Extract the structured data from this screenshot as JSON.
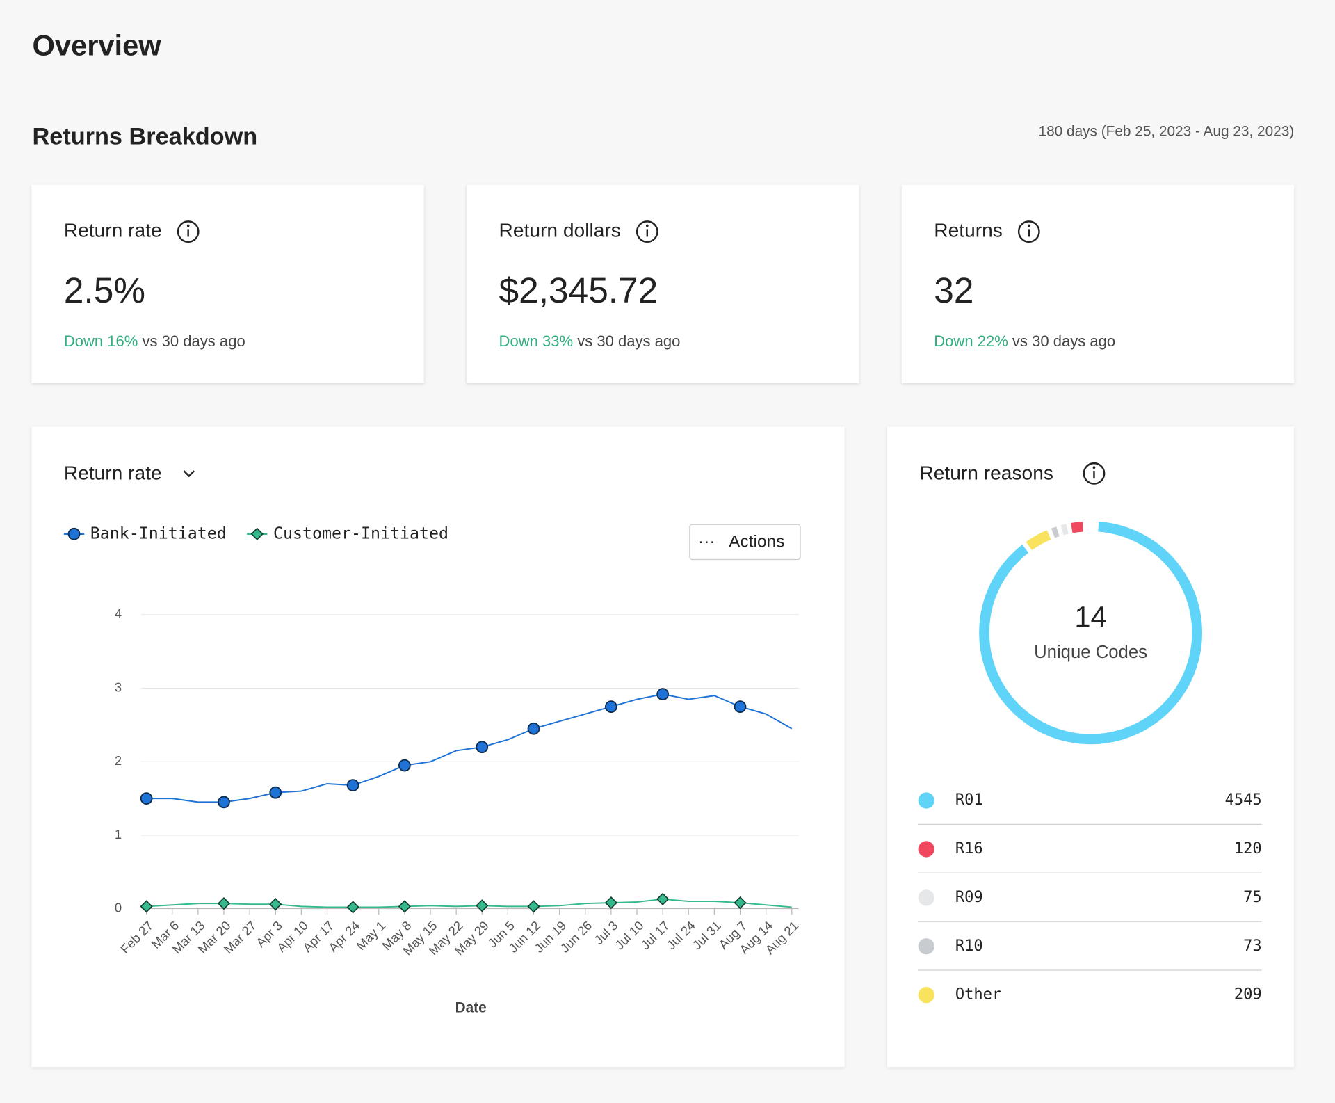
{
  "title": "Overview",
  "section": "Returns Breakdown",
  "date_range": "180 days (Feb 25, 2023 - Aug 23, 2023)",
  "cards": [
    {
      "label": "Return rate",
      "value": "2.5%",
      "change": "Down 16%",
      "comparison": "vs 30 days ago"
    },
    {
      "label": "Return dollars",
      "value": "$2,345.72",
      "change": "Down 33%",
      "comparison": "vs 30 days ago"
    },
    {
      "label": "Returns",
      "value": "32",
      "change": "Down 22%",
      "comparison": "vs 30 days ago"
    }
  ],
  "chart_data": [
    {
      "type": "line",
      "title": "Return rate",
      "button": "Actions",
      "x_label": "Date",
      "categories": [
        "Feb 27",
        "Mar 6",
        "Mar 13",
        "Mar 20",
        "Mar 27",
        "Apr 3",
        "Apr 10",
        "Apr 17",
        "Apr 24",
        "May 1",
        "May 8",
        "May 15",
        "May 22",
        "May 29",
        "Jun 5",
        "Jun 12",
        "Jun 19",
        "Jun 26",
        "Jul 3",
        "Jul 10",
        "Jul 17",
        "Jul 24",
        "Jul 31",
        "Aug 7",
        "Aug 14",
        "Aug 21"
      ],
      "series": [
        {
          "name": "Bank-Initiated",
          "color": "#1f72d6",
          "values": [
            1.5,
            1.5,
            1.45,
            1.45,
            1.5,
            1.58,
            1.6,
            1.7,
            1.68,
            1.8,
            1.95,
            2.0,
            2.15,
            2.2,
            2.3,
            2.45,
            2.55,
            2.65,
            2.75,
            2.85,
            2.92,
            2.85,
            2.9,
            2.75,
            2.65,
            2.45
          ]
        },
        {
          "name": "Customer-Initiated",
          "color": "#36b98c",
          "values": [
            0.03,
            0.05,
            0.07,
            0.07,
            0.06,
            0.06,
            0.03,
            0.02,
            0.02,
            0.02,
            0.03,
            0.04,
            0.03,
            0.04,
            0.03,
            0.03,
            0.04,
            0.07,
            0.08,
            0.09,
            0.13,
            0.1,
            0.1,
            0.08,
            0.05,
            0.02
          ]
        }
      ],
      "ylim": [
        0,
        4
      ],
      "yticks": [
        0,
        1,
        2,
        3,
        4
      ],
      "grid": true
    },
    {
      "type": "donut",
      "title": "Return reasons",
      "center_value": 14,
      "center_label": "Unique Codes",
      "categories": [
        "R01",
        "R16",
        "R09",
        "R10",
        "Other"
      ],
      "values": [
        4545,
        120,
        75,
        73,
        209
      ],
      "colors": [
        "#5fd4f8",
        "#f0485e",
        "#e5e7e9",
        "#c8ccd1",
        "#f8e25e"
      ]
    }
  ]
}
